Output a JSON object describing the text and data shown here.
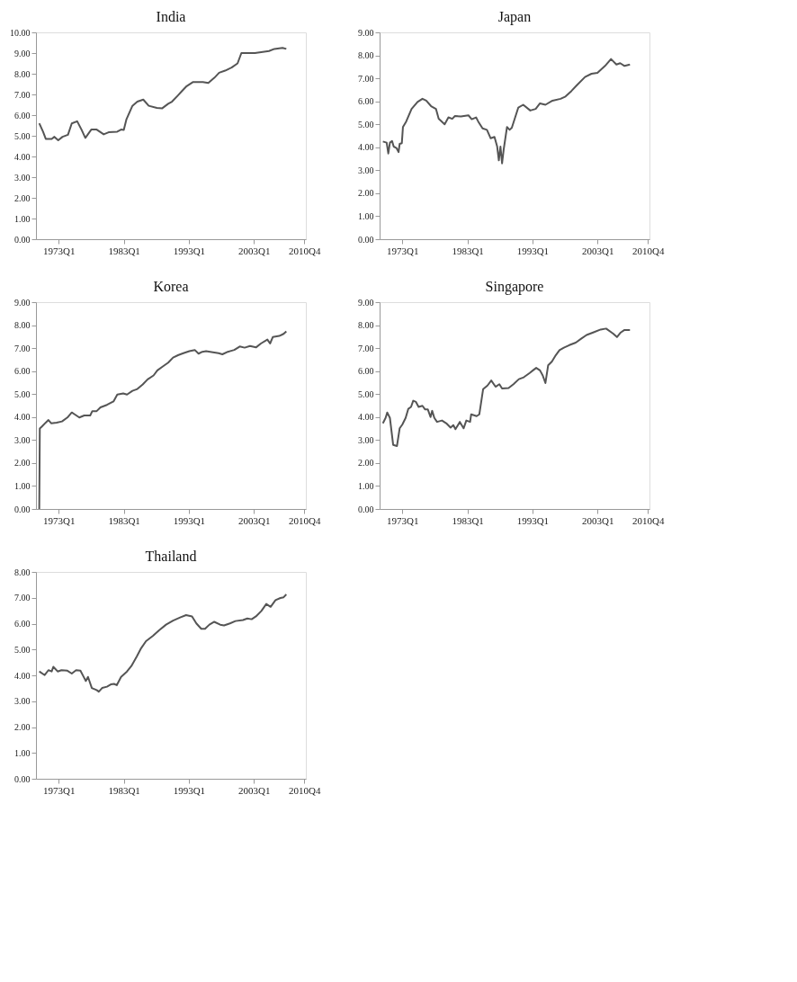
{
  "chart_data": [
    {
      "type": "line",
      "title": "India",
      "ylim": [
        0,
        10
      ],
      "yticks": [
        {
          "value": 0,
          "label": "0.00"
        },
        {
          "value": 1,
          "label": "1.00"
        },
        {
          "value": 2,
          "label": "2.00"
        },
        {
          "value": 3,
          "label": "3.00"
        },
        {
          "value": 4,
          "label": "4.00"
        },
        {
          "value": 5,
          "label": "5.00"
        },
        {
          "value": 6,
          "label": "6.00"
        },
        {
          "value": 7,
          "label": "7.00"
        },
        {
          "value": 8,
          "label": "8.00"
        },
        {
          "value": 9,
          "label": "9.00"
        },
        {
          "value": 10,
          "label": "10.00"
        }
      ],
      "xlim": [
        "1969-07",
        "2011-01"
      ],
      "xticks": [
        {
          "value": "1973-01",
          "label": "1973Q1"
        },
        {
          "value": "1983-01",
          "label": "1983Q1"
        },
        {
          "value": "1993-01",
          "label": "1993Q1"
        },
        {
          "value": "2003-01",
          "label": "2003Q1"
        },
        {
          "value": "2010-10",
          "label": "2010Q4"
        }
      ],
      "grid": false,
      "x": [
        "1970-01",
        "1970-08",
        "1971-01",
        "1971-12",
        "1972-05",
        "1972-12",
        "1973-08",
        "1974-06",
        "1975-01",
        "1975-11",
        "1976-07",
        "1977-02",
        "1978-01",
        "1978-11",
        "1979-12",
        "1980-09",
        "1982-01",
        "1982-08",
        "1983-01",
        "1983-06",
        "1984-05",
        "1985-02",
        "1986-01",
        "1986-11",
        "1988-02",
        "1988-12",
        "1989-11",
        "1990-06",
        "1991-05",
        "1991-12",
        "1992-09",
        "1993-09",
        "1995-03",
        "1996-01",
        "1996-12",
        "1997-09",
        "1998-08",
        "1999-08",
        "2000-07",
        "2001-02",
        "2003-03",
        "2005-05",
        "2006-03",
        "2007-06",
        "2008-01"
      ],
      "series": [
        {
          "color": "#555555",
          "values": [
            5.6,
            5.2,
            4.85,
            4.85,
            4.95,
            4.78,
            4.95,
            5.05,
            5.6,
            5.7,
            5.3,
            4.9,
            5.3,
            5.3,
            5.07,
            5.17,
            5.2,
            5.3,
            5.28,
            5.8,
            6.45,
            6.65,
            6.75,
            6.45,
            6.35,
            6.33,
            6.55,
            6.65,
            6.95,
            7.15,
            7.4,
            7.6,
            7.6,
            7.55,
            7.8,
            8.05,
            8.15,
            8.3,
            8.5,
            9.0,
            9.0,
            9.1,
            9.2,
            9.25,
            9.2
          ]
        }
      ]
    },
    {
      "type": "line",
      "title": "Japan",
      "ylim": [
        0,
        9
      ],
      "yticks": [
        {
          "value": 0,
          "label": "0.00"
        },
        {
          "value": 1,
          "label": "1.00"
        },
        {
          "value": 2,
          "label": "2.00"
        },
        {
          "value": 3,
          "label": "3.00"
        },
        {
          "value": 4,
          "label": "4.00"
        },
        {
          "value": 5,
          "label": "5.00"
        },
        {
          "value": 6,
          "label": "6.00"
        },
        {
          "value": 7,
          "label": "7.00"
        },
        {
          "value": 8,
          "label": "8.00"
        },
        {
          "value": 9,
          "label": "9.00"
        }
      ],
      "xlim": [
        "1969-07",
        "2011-01"
      ],
      "xticks": [
        {
          "value": "1973-01",
          "label": "1973Q1"
        },
        {
          "value": "1983-01",
          "label": "1983Q1"
        },
        {
          "value": "1993-01",
          "label": "1993Q1"
        },
        {
          "value": "2003-01",
          "label": "2003Q1"
        },
        {
          "value": "2010-10",
          "label": "2010Q4"
        }
      ],
      "grid": false,
      "x": [
        "1970-01",
        "1970-08",
        "1970-11",
        "1971-02",
        "1971-06",
        "1971-09",
        "1972-02",
        "1972-06",
        "1972-08",
        "1972-12",
        "1973-02",
        "1973-08",
        "1974-06",
        "1975-05",
        "1976-02",
        "1976-09",
        "1977-06",
        "1978-03",
        "1978-08",
        "1979-07",
        "1980-02",
        "1980-09",
        "1981-02",
        "1982-01",
        "1983-03",
        "1983-09",
        "1984-05",
        "1984-09",
        "1985-05",
        "1986-01",
        "1986-08",
        "1987-03",
        "1987-08",
        "1987-11",
        "1988-02",
        "1988-05",
        "1988-08",
        "1989-02",
        "1989-07",
        "1989-11",
        "1990-11",
        "1991-08",
        "1992-09",
        "1993-07",
        "1994-03",
        "1995-01",
        "1996-02",
        "1997-05",
        "1998-02",
        "1999-01",
        "1999-11",
        "2001-02",
        "2002-02",
        "2003-01",
        "2004-03",
        "2005-02",
        "2005-12",
        "2006-07",
        "2007-03",
        "2008-01"
      ],
      "series": [
        {
          "color": "#555555",
          "values": [
            4.25,
            4.2,
            3.73,
            4.2,
            4.27,
            4.03,
            3.97,
            3.79,
            4.15,
            4.18,
            4.88,
            5.12,
            5.67,
            5.97,
            6.11,
            6.03,
            5.79,
            5.67,
            5.24,
            5.0,
            5.3,
            5.24,
            5.36,
            5.34,
            5.39,
            5.22,
            5.3,
            5.12,
            4.82,
            4.76,
            4.39,
            4.45,
            4.03,
            3.43,
            4.03,
            3.3,
            3.91,
            4.88,
            4.76,
            4.85,
            5.73,
            5.85,
            5.6,
            5.67,
            5.91,
            5.85,
            6.03,
            6.11,
            6.21,
            6.45,
            6.7,
            7.06,
            7.2,
            7.24,
            7.54,
            7.84,
            7.6,
            7.66,
            7.54,
            7.6
          ]
        }
      ]
    },
    {
      "type": "line",
      "title": "Korea",
      "ylim": [
        0,
        9
      ],
      "yticks": [
        {
          "value": 0,
          "label": "0.00"
        },
        {
          "value": 1,
          "label": "1.00"
        },
        {
          "value": 2,
          "label": "2.00"
        },
        {
          "value": 3,
          "label": "3.00"
        },
        {
          "value": 4,
          "label": "4.00"
        },
        {
          "value": 5,
          "label": "5.00"
        },
        {
          "value": 6,
          "label": "6.00"
        },
        {
          "value": 7,
          "label": "7.00"
        },
        {
          "value": 8,
          "label": "8.00"
        },
        {
          "value": 9,
          "label": "9.00"
        }
      ],
      "xlim": [
        "1969-07",
        "2011-01"
      ],
      "xticks": [
        {
          "value": "1973-01",
          "label": "1973Q1"
        },
        {
          "value": "1983-01",
          "label": "1983Q1"
        },
        {
          "value": "1993-01",
          "label": "1993Q1"
        },
        {
          "value": "2003-01",
          "label": "2003Q1"
        },
        {
          "value": "2010-10",
          "label": "2010Q4"
        }
      ],
      "grid": false,
      "x": [
        "1970-01",
        "1970-02",
        "1970-06",
        "1971-01",
        "1971-06",
        "1971-11",
        "1972-09",
        "1973-07",
        "1974-05",
        "1975-01",
        "1975-07",
        "1976-03",
        "1976-12",
        "1977-11",
        "1978-03",
        "1978-11",
        "1979-06",
        "1980-06",
        "1981-06",
        "1982-01",
        "1982-12",
        "1983-07",
        "1984-05",
        "1985-02",
        "1985-12",
        "1986-09",
        "1987-08",
        "1988-03",
        "1989-01",
        "1989-11",
        "1990-08",
        "1991-06",
        "1992-03",
        "1993-02",
        "1993-12",
        "1994-07",
        "1995-02",
        "1995-09",
        "1996-07",
        "1997-08",
        "1998-03",
        "1999-01",
        "2000-01",
        "2000-11",
        "2001-08",
        "2002-06",
        "2003-05",
        "2004-02",
        "2005-02",
        "2005-07",
        "2005-12",
        "2006-12",
        "2007-08",
        "2008-01"
      ],
      "series": [
        {
          "color": "#555555",
          "values": [
            0,
            3.5,
            3.59,
            3.76,
            3.87,
            3.73,
            3.76,
            3.81,
            3.98,
            4.2,
            4.11,
            3.98,
            4.07,
            4.07,
            4.26,
            4.26,
            4.42,
            4.53,
            4.68,
            4.98,
            5.03,
            4.98,
            5.14,
            5.22,
            5.42,
            5.64,
            5.81,
            6.03,
            6.2,
            6.37,
            6.59,
            6.7,
            6.78,
            6.87,
            6.92,
            6.76,
            6.84,
            6.87,
            6.83,
            6.78,
            6.73,
            6.84,
            6.92,
            7.07,
            7.02,
            7.09,
            7.03,
            7.2,
            7.37,
            7.2,
            7.48,
            7.53,
            7.62,
            7.73
          ]
        }
      ]
    },
    {
      "type": "line",
      "title": "Singapore",
      "ylim": [
        0,
        9
      ],
      "yticks": [
        {
          "value": 0,
          "label": "0.00"
        },
        {
          "value": 1,
          "label": "1.00"
        },
        {
          "value": 2,
          "label": "2.00"
        },
        {
          "value": 3,
          "label": "3.00"
        },
        {
          "value": 4,
          "label": "4.00"
        },
        {
          "value": 5,
          "label": "5.00"
        },
        {
          "value": 6,
          "label": "6.00"
        },
        {
          "value": 7,
          "label": "7.00"
        },
        {
          "value": 8,
          "label": "8.00"
        },
        {
          "value": 9,
          "label": "9.00"
        }
      ],
      "xlim": [
        "1969-07",
        "2011-01"
      ],
      "xticks": [
        {
          "value": "1973-01",
          "label": "1973Q1"
        },
        {
          "value": "1983-01",
          "label": "1983Q1"
        },
        {
          "value": "1993-01",
          "label": "1993Q1"
        },
        {
          "value": "2003-01",
          "label": "2003Q1"
        },
        {
          "value": "2010-10",
          "label": "2010Q4"
        }
      ],
      "grid": false,
      "x": [
        "1970-01",
        "1970-06",
        "1970-09",
        "1971-02",
        "1971-08",
        "1972-03",
        "1972-08",
        "1973-01",
        "1973-07",
        "1973-12",
        "1974-05",
        "1974-09",
        "1975-02",
        "1975-07",
        "1976-02",
        "1976-07",
        "1976-12",
        "1977-05",
        "1977-08",
        "1977-12",
        "1978-05",
        "1979-02",
        "1979-11",
        "1980-06",
        "1980-11",
        "1981-03",
        "1981-11",
        "1982-06",
        "1982-11",
        "1983-06",
        "1983-08",
        "1984-06",
        "1984-11",
        "1985-06",
        "1986-02",
        "1986-09",
        "1987-05",
        "1987-12",
        "1988-05",
        "1989-05",
        "1990-02",
        "1990-12",
        "1991-09",
        "1992-08",
        "1993-03",
        "1993-08",
        "1994-03",
        "1994-08",
        "1995-01",
        "1995-06",
        "1996-01",
        "1996-08",
        "1997-03",
        "1997-11",
        "1998-09",
        "1999-09",
        "2000-07",
        "2001-05",
        "2002-05",
        "2003-07",
        "2004-05",
        "2005-06",
        "2006-01",
        "2006-08",
        "2007-03",
        "2008-01"
      ],
      "series": [
        {
          "color": "#555555",
          "values": [
            3.73,
            3.96,
            4.2,
            3.96,
            2.79,
            2.74,
            3.51,
            3.68,
            3.96,
            4.36,
            4.44,
            4.71,
            4.66,
            4.44,
            4.49,
            4.33,
            4.33,
            4.0,
            4.27,
            3.96,
            3.79,
            3.85,
            3.71,
            3.54,
            3.65,
            3.47,
            3.79,
            3.51,
            3.85,
            3.79,
            4.12,
            4.04,
            4.12,
            5.21,
            5.37,
            5.59,
            5.32,
            5.43,
            5.24,
            5.26,
            5.43,
            5.65,
            5.73,
            5.92,
            6.05,
            6.14,
            6.03,
            5.81,
            5.48,
            6.25,
            6.42,
            6.69,
            6.91,
            7.02,
            7.13,
            7.24,
            7.41,
            7.57,
            7.68,
            7.81,
            7.85,
            7.63,
            7.48,
            7.68,
            7.79,
            7.79
          ]
        }
      ]
    },
    {
      "type": "line",
      "title": "Thailand",
      "ylim": [
        0,
        8
      ],
      "yticks": [
        {
          "value": 0,
          "label": "0.00"
        },
        {
          "value": 1,
          "label": "1.00"
        },
        {
          "value": 2,
          "label": "2.00"
        },
        {
          "value": 3,
          "label": "3.00"
        },
        {
          "value": 4,
          "label": "4.00"
        },
        {
          "value": 5,
          "label": "5.00"
        },
        {
          "value": 6,
          "label": "6.00"
        },
        {
          "value": 7,
          "label": "7.00"
        },
        {
          "value": 8,
          "label": "8.00"
        }
      ],
      "xlim": [
        "1969-07",
        "2011-01"
      ],
      "xticks": [
        {
          "value": "1973-01",
          "label": "1973Q1"
        },
        {
          "value": "1983-01",
          "label": "1983Q1"
        },
        {
          "value": "1993-01",
          "label": "1993Q1"
        },
        {
          "value": "2003-01",
          "label": "2003Q1"
        },
        {
          "value": "2010-10",
          "label": "2010Q4"
        }
      ],
      "grid": false,
      "x": [
        "1970-01",
        "1970-11",
        "1971-06",
        "1971-12",
        "1972-03",
        "1972-11",
        "1973-06",
        "1974-05",
        "1975-01",
        "1975-09",
        "1976-05",
        "1976-12",
        "1977-03",
        "1977-07",
        "1978-02",
        "1978-11",
        "1979-03",
        "1979-09",
        "1980-06",
        "1981-01",
        "1981-07",
        "1981-12",
        "1982-08",
        "1983-07",
        "1984-03",
        "1985-01",
        "1985-09",
        "1986-06",
        "1987-07",
        "1988-06",
        "1989-07",
        "1990-08",
        "1991-09",
        "1992-08",
        "1993-07",
        "1994-03",
        "1994-12",
        "1995-07",
        "1996-03",
        "1996-12",
        "1997-11",
        "1998-06",
        "1999-05",
        "2000-03",
        "2001-05",
        "2002-01",
        "2002-09",
        "2003-05",
        "2004-03",
        "2004-12",
        "2005-08",
        "2006-05",
        "2007-02",
        "2007-08",
        "2008-01"
      ],
      "series": [
        {
          "color": "#555555",
          "values": [
            4.15,
            4.01,
            4.2,
            4.15,
            4.33,
            4.15,
            4.2,
            4.18,
            4.07,
            4.2,
            4.18,
            3.9,
            3.78,
            3.94,
            3.51,
            3.43,
            3.37,
            3.51,
            3.56,
            3.65,
            3.67,
            3.62,
            3.94,
            4.15,
            4.36,
            4.73,
            5.05,
            5.32,
            5.53,
            5.74,
            5.96,
            6.12,
            6.24,
            6.33,
            6.28,
            6.01,
            5.8,
            5.8,
            5.96,
            6.07,
            5.96,
            5.93,
            6.01,
            6.1,
            6.14,
            6.2,
            6.17,
            6.28,
            6.49,
            6.76,
            6.65,
            6.91,
            6.99,
            7.02,
            7.13
          ]
        }
      ]
    }
  ]
}
